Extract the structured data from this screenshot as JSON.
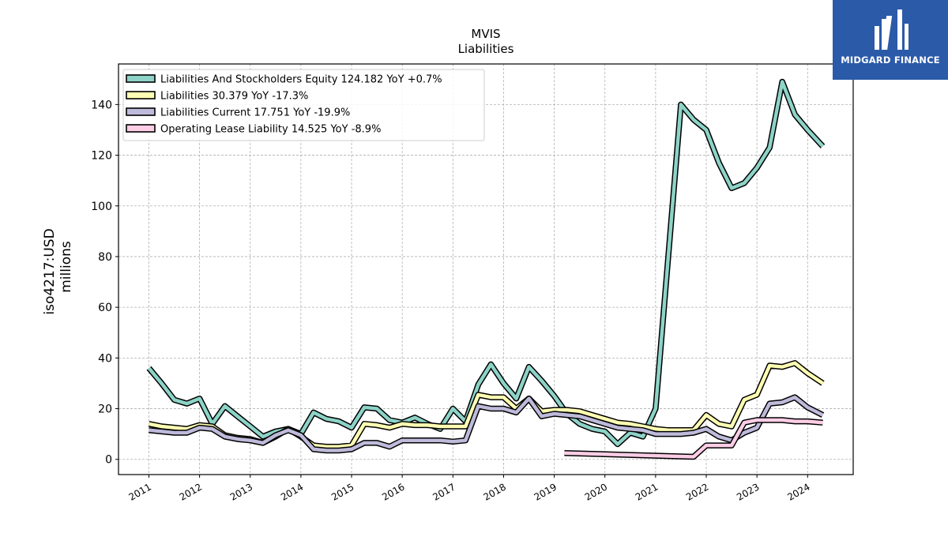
{
  "watermark": {
    "brand": "MIDGARD FINANCE",
    "bg_color": "#2b5aa8"
  },
  "chart_data": {
    "type": "line",
    "title": "MVIS",
    "subtitle": "Liabilities",
    "ylabel_line1": "iso4217:USD",
    "ylabel_line2": "millions",
    "xlim": [
      2010.4,
      2024.9
    ],
    "ylim": [
      -6,
      156
    ],
    "yticks": [
      0,
      20,
      40,
      60,
      80,
      100,
      120,
      140
    ],
    "xticks": [
      2011,
      2012,
      2013,
      2014,
      2015,
      2016,
      2017,
      2018,
      2019,
      2020,
      2021,
      2022,
      2023,
      2024
    ],
    "grid": true,
    "legend_position": "upper-left",
    "series": [
      {
        "name": "Liabilities And Stockholders Equity",
        "legend": "Liabilities And Stockholders Equity  124.182 YoY +0.7%",
        "color": "#8dd3c7",
        "x": [
          2011.0,
          2011.25,
          2011.5,
          2011.75,
          2012.0,
          2012.25,
          2012.5,
          2012.75,
          2013.0,
          2013.25,
          2013.5,
          2013.75,
          2014.0,
          2014.25,
          2014.5,
          2014.75,
          2015.0,
          2015.25,
          2015.5,
          2015.75,
          2016.0,
          2016.25,
          2016.5,
          2016.75,
          2017.0,
          2017.25,
          2017.5,
          2017.75,
          2018.0,
          2018.25,
          2018.5,
          2018.75,
          2019.0,
          2019.25,
          2019.5,
          2019.75,
          2020.0,
          2020.25,
          2020.5,
          2020.75,
          2021.0,
          2021.25,
          2021.5,
          2021.75,
          2022.0,
          2022.25,
          2022.5,
          2022.75,
          2023.0,
          2023.25,
          2023.5,
          2023.75,
          2024.0,
          2024.3
        ],
        "values": [
          36,
          30,
          23.5,
          22,
          24,
          14,
          21,
          17,
          13,
          9,
          11,
          12,
          10,
          18.5,
          16,
          15,
          12.5,
          20.5,
          20,
          15.5,
          14.5,
          16.5,
          14,
          12,
          20,
          15,
          29.5,
          37.5,
          30,
          24,
          36.5,
          31,
          25,
          18,
          14,
          12,
          11,
          6,
          10.5,
          9,
          20,
          80,
          140,
          134,
          130,
          117,
          107,
          109,
          115,
          123,
          149,
          136,
          130,
          123.5
        ]
      },
      {
        "name": "Liabilities",
        "legend": "Liabilities  30.379 YoY -17.3%",
        "color": "#ffffb3",
        "x": [
          2011.0,
          2011.25,
          2011.5,
          2011.75,
          2012.0,
          2012.25,
          2012.5,
          2012.75,
          2013.0,
          2013.25,
          2013.5,
          2013.75,
          2014.0,
          2014.25,
          2014.5,
          2014.75,
          2015.0,
          2015.25,
          2015.5,
          2015.75,
          2016.0,
          2016.25,
          2016.5,
          2016.75,
          2017.0,
          2017.25,
          2017.5,
          2017.75,
          2018.0,
          2018.25,
          2018.5,
          2018.75,
          2019.0,
          2019.25,
          2019.5,
          2019.75,
          2020.0,
          2020.25,
          2020.5,
          2020.75,
          2021.0,
          2021.25,
          2021.5,
          2021.75,
          2022.0,
          2022.25,
          2022.5,
          2022.75,
          2023.0,
          2023.25,
          2023.5,
          2023.75,
          2024.0,
          2024.3
        ],
        "values": [
          14,
          13,
          12.5,
          12,
          13.5,
          13,
          9.5,
          8.5,
          8,
          6.5,
          9,
          12,
          9,
          5.5,
          5,
          5,
          5.5,
          14,
          13.5,
          12.5,
          14,
          13.5,
          13.5,
          13,
          13,
          13,
          25.5,
          24.5,
          24.5,
          20,
          24,
          19,
          19.5,
          19.5,
          19,
          17.5,
          16,
          14.5,
          14,
          13,
          12,
          11.5,
          11.5,
          11.5,
          17.5,
          14,
          13,
          23.5,
          25.5,
          37,
          36.5,
          38,
          34,
          30
        ]
      },
      {
        "name": "Liabilities Current",
        "legend": "Liabilities Current  17.751 YoY -19.9%",
        "color": "#bebada",
        "x": [
          2011.0,
          2011.25,
          2011.5,
          2011.75,
          2012.0,
          2012.25,
          2012.5,
          2012.75,
          2013.0,
          2013.25,
          2013.5,
          2013.75,
          2014.0,
          2014.25,
          2014.5,
          2014.75,
          2015.0,
          2015.25,
          2015.5,
          2015.75,
          2016.0,
          2016.25,
          2016.5,
          2016.75,
          2017.0,
          2017.25,
          2017.5,
          2017.75,
          2018.0,
          2018.25,
          2018.5,
          2018.75,
          2019.0,
          2019.25,
          2019.5,
          2019.75,
          2020.0,
          2020.25,
          2020.5,
          2020.75,
          2021.0,
          2021.25,
          2021.5,
          2021.75,
          2022.0,
          2022.25,
          2022.5,
          2022.75,
          2023.0,
          2023.25,
          2023.5,
          2023.75,
          2024.0,
          2024.3
        ],
        "values": [
          11.5,
          11,
          10.5,
          10.5,
          12.5,
          12,
          9,
          8,
          7.5,
          6.5,
          9.5,
          11.5,
          9.5,
          4,
          3.5,
          3.5,
          4,
          6.5,
          6.5,
          5,
          7.5,
          7.5,
          7.5,
          7.5,
          7,
          7.5,
          21,
          20,
          20,
          18.5,
          24,
          17,
          18,
          17.5,
          17,
          15.5,
          14,
          12.5,
          12,
          11.5,
          10,
          10,
          10,
          10.5,
          12,
          9,
          7.5,
          10.5,
          12.5,
          22,
          22.5,
          24.5,
          20.5,
          17.5
        ]
      },
      {
        "name": "Operating Lease Liability",
        "legend": "Operating Lease Liability  14.525 YoY -8.9%",
        "color": "#fccde5",
        "x": [
          2019.2,
          2021.75,
          2022.0,
          2022.25,
          2022.5,
          2022.75,
          2023.0,
          2023.25,
          2023.5,
          2023.75,
          2024.0,
          2024.3
        ],
        "values": [
          2.5,
          1,
          5.5,
          5.5,
          5.5,
          14.5,
          15.5,
          15.5,
          15.5,
          15,
          15,
          14.5
        ]
      }
    ]
  }
}
